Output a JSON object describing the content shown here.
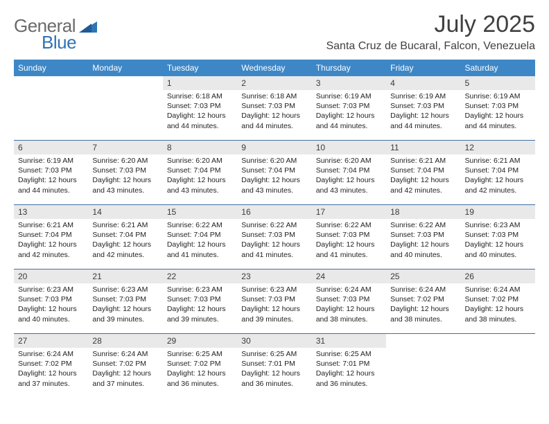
{
  "brand": {
    "part1": "General",
    "part2": "Blue"
  },
  "title": "July 2025",
  "location": "Santa Cruz de Bucaral, Falcon, Venezuela",
  "colors": {
    "header_bg": "#3d87c7",
    "header_fg": "#ffffff",
    "daynum_bg": "#e9e9e9",
    "rule": "#3d6ea5",
    "brand_grey": "#6a6a6a",
    "brand_blue": "#2f74b5",
    "title_color": "#404040"
  },
  "weekdays": [
    "Sunday",
    "Monday",
    "Tuesday",
    "Wednesday",
    "Thursday",
    "Friday",
    "Saturday"
  ],
  "weeks": [
    [
      {
        "n": "",
        "sr": "",
        "ss": "",
        "dl": "",
        "empty": true
      },
      {
        "n": "",
        "sr": "",
        "ss": "",
        "dl": "",
        "empty": true
      },
      {
        "n": "1",
        "sr": "Sunrise: 6:18 AM",
        "ss": "Sunset: 7:03 PM",
        "dl": "Daylight: 12 hours and 44 minutes."
      },
      {
        "n": "2",
        "sr": "Sunrise: 6:18 AM",
        "ss": "Sunset: 7:03 PM",
        "dl": "Daylight: 12 hours and 44 minutes."
      },
      {
        "n": "3",
        "sr": "Sunrise: 6:19 AM",
        "ss": "Sunset: 7:03 PM",
        "dl": "Daylight: 12 hours and 44 minutes."
      },
      {
        "n": "4",
        "sr": "Sunrise: 6:19 AM",
        "ss": "Sunset: 7:03 PM",
        "dl": "Daylight: 12 hours and 44 minutes."
      },
      {
        "n": "5",
        "sr": "Sunrise: 6:19 AM",
        "ss": "Sunset: 7:03 PM",
        "dl": "Daylight: 12 hours and 44 minutes."
      }
    ],
    [
      {
        "n": "6",
        "sr": "Sunrise: 6:19 AM",
        "ss": "Sunset: 7:03 PM",
        "dl": "Daylight: 12 hours and 44 minutes."
      },
      {
        "n": "7",
        "sr": "Sunrise: 6:20 AM",
        "ss": "Sunset: 7:03 PM",
        "dl": "Daylight: 12 hours and 43 minutes."
      },
      {
        "n": "8",
        "sr": "Sunrise: 6:20 AM",
        "ss": "Sunset: 7:04 PM",
        "dl": "Daylight: 12 hours and 43 minutes."
      },
      {
        "n": "9",
        "sr": "Sunrise: 6:20 AM",
        "ss": "Sunset: 7:04 PM",
        "dl": "Daylight: 12 hours and 43 minutes."
      },
      {
        "n": "10",
        "sr": "Sunrise: 6:20 AM",
        "ss": "Sunset: 7:04 PM",
        "dl": "Daylight: 12 hours and 43 minutes."
      },
      {
        "n": "11",
        "sr": "Sunrise: 6:21 AM",
        "ss": "Sunset: 7:04 PM",
        "dl": "Daylight: 12 hours and 42 minutes."
      },
      {
        "n": "12",
        "sr": "Sunrise: 6:21 AM",
        "ss": "Sunset: 7:04 PM",
        "dl": "Daylight: 12 hours and 42 minutes."
      }
    ],
    [
      {
        "n": "13",
        "sr": "Sunrise: 6:21 AM",
        "ss": "Sunset: 7:04 PM",
        "dl": "Daylight: 12 hours and 42 minutes."
      },
      {
        "n": "14",
        "sr": "Sunrise: 6:21 AM",
        "ss": "Sunset: 7:04 PM",
        "dl": "Daylight: 12 hours and 42 minutes."
      },
      {
        "n": "15",
        "sr": "Sunrise: 6:22 AM",
        "ss": "Sunset: 7:04 PM",
        "dl": "Daylight: 12 hours and 41 minutes."
      },
      {
        "n": "16",
        "sr": "Sunrise: 6:22 AM",
        "ss": "Sunset: 7:03 PM",
        "dl": "Daylight: 12 hours and 41 minutes."
      },
      {
        "n": "17",
        "sr": "Sunrise: 6:22 AM",
        "ss": "Sunset: 7:03 PM",
        "dl": "Daylight: 12 hours and 41 minutes."
      },
      {
        "n": "18",
        "sr": "Sunrise: 6:22 AM",
        "ss": "Sunset: 7:03 PM",
        "dl": "Daylight: 12 hours and 40 minutes."
      },
      {
        "n": "19",
        "sr": "Sunrise: 6:23 AM",
        "ss": "Sunset: 7:03 PM",
        "dl": "Daylight: 12 hours and 40 minutes."
      }
    ],
    [
      {
        "n": "20",
        "sr": "Sunrise: 6:23 AM",
        "ss": "Sunset: 7:03 PM",
        "dl": "Daylight: 12 hours and 40 minutes."
      },
      {
        "n": "21",
        "sr": "Sunrise: 6:23 AM",
        "ss": "Sunset: 7:03 PM",
        "dl": "Daylight: 12 hours and 39 minutes."
      },
      {
        "n": "22",
        "sr": "Sunrise: 6:23 AM",
        "ss": "Sunset: 7:03 PM",
        "dl": "Daylight: 12 hours and 39 minutes."
      },
      {
        "n": "23",
        "sr": "Sunrise: 6:23 AM",
        "ss": "Sunset: 7:03 PM",
        "dl": "Daylight: 12 hours and 39 minutes."
      },
      {
        "n": "24",
        "sr": "Sunrise: 6:24 AM",
        "ss": "Sunset: 7:03 PM",
        "dl": "Daylight: 12 hours and 38 minutes."
      },
      {
        "n": "25",
        "sr": "Sunrise: 6:24 AM",
        "ss": "Sunset: 7:02 PM",
        "dl": "Daylight: 12 hours and 38 minutes."
      },
      {
        "n": "26",
        "sr": "Sunrise: 6:24 AM",
        "ss": "Sunset: 7:02 PM",
        "dl": "Daylight: 12 hours and 38 minutes."
      }
    ],
    [
      {
        "n": "27",
        "sr": "Sunrise: 6:24 AM",
        "ss": "Sunset: 7:02 PM",
        "dl": "Daylight: 12 hours and 37 minutes."
      },
      {
        "n": "28",
        "sr": "Sunrise: 6:24 AM",
        "ss": "Sunset: 7:02 PM",
        "dl": "Daylight: 12 hours and 37 minutes."
      },
      {
        "n": "29",
        "sr": "Sunrise: 6:25 AM",
        "ss": "Sunset: 7:02 PM",
        "dl": "Daylight: 12 hours and 36 minutes."
      },
      {
        "n": "30",
        "sr": "Sunrise: 6:25 AM",
        "ss": "Sunset: 7:01 PM",
        "dl": "Daylight: 12 hours and 36 minutes."
      },
      {
        "n": "31",
        "sr": "Sunrise: 6:25 AM",
        "ss": "Sunset: 7:01 PM",
        "dl": "Daylight: 12 hours and 36 minutes."
      },
      {
        "n": "",
        "sr": "",
        "ss": "",
        "dl": "",
        "empty": true
      },
      {
        "n": "",
        "sr": "",
        "ss": "",
        "dl": "",
        "empty": true
      }
    ]
  ]
}
